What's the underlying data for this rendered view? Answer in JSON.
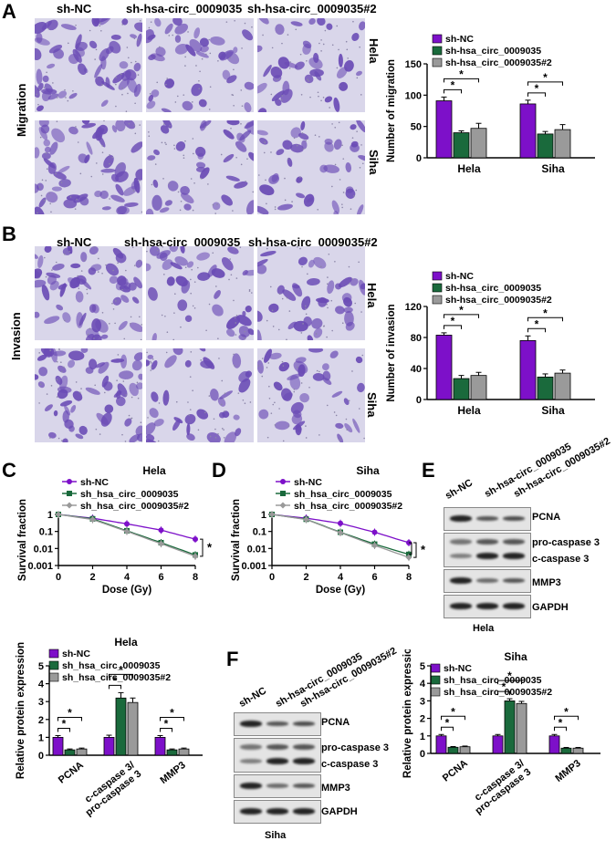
{
  "colors": {
    "sh_NC": "#7d10c9",
    "sh_circ": "#1a6a3c",
    "sh_circ2": "#9a9a9a",
    "stain": "#6a4bb5"
  },
  "panel_letters": [
    "A",
    "B",
    "C",
    "D",
    "E",
    "F"
  ],
  "panelA": {
    "columns": [
      "sh-NC",
      "sh-hsa-circ_0009035",
      "sh-hsa-circ_0009035#2"
    ],
    "row_labels": [
      "Hela",
      "Siha"
    ],
    "side_label": "Migration"
  },
  "panelB": {
    "columns": [
      "sh-NC",
      "sh-hsa-circ_0009035",
      "sh-hsa-circ_0009035#2"
    ],
    "row_labels": [
      "Hela",
      "Siha"
    ],
    "side_label": "Invasion"
  },
  "panelE": {
    "lanes": [
      "sh-NC",
      "sh-hsa-circ_0009035",
      "sh-hsa-circ_0009035#2"
    ],
    "labels": [
      "PCNA",
      "pro-caspase 3",
      "c-caspase 3",
      "MMP3",
      "GAPDH"
    ],
    "cell": "Hela"
  },
  "panelF": {
    "lanes": [
      "sh-NC",
      "sh-hsa-circ_0009035",
      "sh-hsa-circ_0009035#2"
    ],
    "labels": [
      "PCNA",
      "pro-caspase 3",
      "c-caspase 3",
      "MMP3",
      "GAPDH"
    ],
    "cell": "Siha"
  },
  "chart_data": [
    {
      "id": "migration",
      "type": "bar",
      "categories": [
        "Hela",
        "Siha"
      ],
      "series": [
        {
          "name": "sh-NC",
          "values": [
            91,
            86
          ],
          "errors": [
            6,
            6
          ]
        },
        {
          "name": "sh-hsa_circ_0009035",
          "values": [
            40,
            38
          ],
          "errors": [
            3,
            4
          ]
        },
        {
          "name": "sh-hsa_circ_0009035#2",
          "values": [
            47,
            45
          ],
          "errors": [
            8,
            8
          ]
        }
      ],
      "ylabel": "Number of migration",
      "ylim": [
        0,
        150
      ],
      "yticks": [
        0,
        50,
        100,
        150
      ],
      "sig": "*",
      "legend": "top"
    },
    {
      "id": "invasion",
      "type": "bar",
      "categories": [
        "Hela",
        "Siha"
      ],
      "series": [
        {
          "name": "sh-NC",
          "values": [
            83,
            76
          ],
          "errors": [
            3,
            6
          ]
        },
        {
          "name": "sh-hsa_circ_0009035",
          "values": [
            27,
            29
          ],
          "errors": [
            4,
            4
          ]
        },
        {
          "name": "sh-hsa_circ_0009035#2",
          "values": [
            31,
            34
          ],
          "errors": [
            4,
            4
          ]
        }
      ],
      "ylabel": "Number of invasion",
      "ylim": [
        0,
        120
      ],
      "yticks": [
        0,
        40,
        80,
        120
      ],
      "sig": "*",
      "legend": "top"
    },
    {
      "id": "survival-hela",
      "type": "line",
      "title": "Hela",
      "x": [
        0,
        2,
        4,
        6,
        8
      ],
      "series": [
        {
          "name": "sh-NC",
          "values": [
            1,
            0.6,
            0.28,
            0.12,
            0.035
          ]
        },
        {
          "name": "sh_hsa_circ_0009035",
          "values": [
            1,
            0.55,
            0.11,
            0.022,
            0.0042
          ]
        },
        {
          "name": "sh_hsa_circ_0009035#2",
          "values": [
            1,
            0.5,
            0.1,
            0.019,
            0.0035
          ]
        }
      ],
      "xlabel": "Dose (Gy)",
      "ylabel": "Survival fraction",
      "xticks": [
        0,
        2,
        4,
        6,
        8
      ],
      "yticks": [
        1,
        0.1,
        0.01,
        0.001
      ],
      "ylim": [
        0.001,
        1
      ],
      "yscale": "log",
      "sig": "*",
      "legend": "top"
    },
    {
      "id": "survival-siha",
      "type": "line",
      "title": "Siha",
      "x": [
        0,
        2,
        4,
        6,
        8
      ],
      "series": [
        {
          "name": "sh-NC",
          "values": [
            1,
            0.6,
            0.3,
            0.09,
            0.022
          ]
        },
        {
          "name": "sh_hsa_circ_0009035",
          "values": [
            1,
            0.52,
            0.09,
            0.018,
            0.0045
          ]
        },
        {
          "name": "sh_hsa_circ_0009035#2",
          "values": [
            1,
            0.5,
            0.085,
            0.015,
            0.003
          ]
        }
      ],
      "xlabel": "Dose (Gy)",
      "ylabel": "Survival fraction",
      "xticks": [
        0,
        2,
        4,
        6,
        8
      ],
      "yticks": [
        1,
        0.1,
        0.01,
        0.001
      ],
      "ylim": [
        0.001,
        1
      ],
      "yscale": "log",
      "sig": "*",
      "legend": "top"
    },
    {
      "id": "protein-hela",
      "type": "bar",
      "title": "Hela",
      "categories": [
        "PCNA",
        "c-caspase 3/\npro-caspase 3",
        "MMP3"
      ],
      "series": [
        {
          "name": "sh-NC",
          "values": [
            1.0,
            1.0,
            1.0
          ],
          "errors": [
            0.1,
            0.12,
            0.1
          ]
        },
        {
          "name": "sh_hsa_circ_0009035",
          "values": [
            0.3,
            3.2,
            0.3
          ],
          "errors": [
            0.05,
            0.3,
            0.05
          ]
        },
        {
          "name": "sh_hsa_circ_0009035#2",
          "values": [
            0.35,
            2.95,
            0.35
          ],
          "errors": [
            0.05,
            0.25,
            0.05
          ]
        }
      ],
      "ylabel": "Relative protein expression",
      "ylim": [
        0,
        5
      ],
      "yticks": [
        0,
        1,
        2,
        3,
        4,
        5
      ],
      "sig": "*",
      "legend": "top"
    },
    {
      "id": "protein-siha",
      "type": "bar",
      "title": "Siha",
      "categories": [
        "PCNA",
        "c-caspase 3/\npro-caspase 3",
        "MMP3"
      ],
      "series": [
        {
          "name": "sh-NC",
          "values": [
            1.0,
            1.0,
            1.0
          ],
          "errors": [
            0.08,
            0.08,
            0.08
          ]
        },
        {
          "name": "sh_hsa_circ_0009035",
          "values": [
            0.35,
            3.0,
            0.3
          ],
          "errors": [
            0.04,
            0.12,
            0.04
          ]
        },
        {
          "name": "sh_hsa_circ_0009035#2",
          "values": [
            0.38,
            2.85,
            0.3
          ],
          "errors": [
            0.04,
            0.12,
            0.04
          ]
        }
      ],
      "ylabel": "Relative protein expression",
      "ylim": [
        0,
        5
      ],
      "yticks": [
        0,
        1,
        2,
        3,
        4,
        5
      ],
      "sig": "*",
      "legend": "top"
    }
  ]
}
